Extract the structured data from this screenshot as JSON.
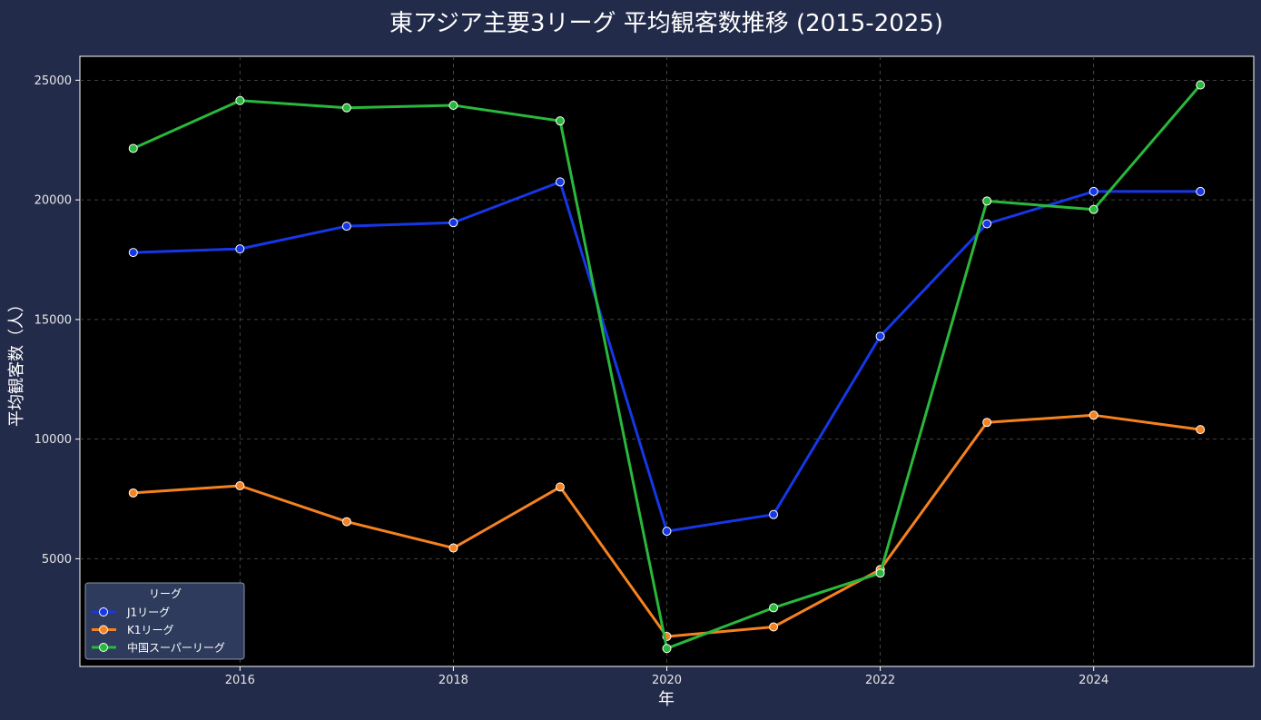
{
  "chart_data": {
    "type": "line",
    "title": "東アジア主要3リーグ 平均観客数推移 (2015-2025)",
    "xlabel": "年",
    "ylabel": "平均観客数（人）",
    "x": [
      2015,
      2016,
      2017,
      2018,
      2019,
      2020,
      2021,
      2022,
      2023,
      2024,
      2025
    ],
    "xlim": [
      2014.5,
      2025.5
    ],
    "ylim": [
      500,
      26000
    ],
    "xticks": [
      2016,
      2018,
      2020,
      2022,
      2024
    ],
    "yticks": [
      5000,
      10000,
      15000,
      20000,
      25000
    ],
    "grid": true,
    "legend": {
      "title": "リーグ",
      "placement": "lower-left"
    },
    "series": [
      {
        "name": "J1リーグ",
        "color": "#1637e6",
        "values": [
          17800,
          17950,
          18900,
          19050,
          20750,
          6150,
          6850,
          14300,
          19000,
          20350,
          20350
        ]
      },
      {
        "name": "K1リーグ",
        "color": "#f5821f",
        "values": [
          7750,
          8050,
          6550,
          5450,
          8000,
          1750,
          2150,
          4550,
          10700,
          11000,
          10400
        ]
      },
      {
        "name": "中国スーパーリーグ",
        "color": "#29b83c",
        "values": [
          22150,
          24150,
          23850,
          23950,
          23300,
          1250,
          2950,
          4400,
          19950,
          19600,
          24800
        ]
      }
    ]
  },
  "colors": {
    "page_background": "#232b4a",
    "plot_background": "#000000",
    "grid": "#555555",
    "text": "#ffffff",
    "tick_text": "#e6e6e6",
    "legend_background": "#2e3b5c"
  }
}
